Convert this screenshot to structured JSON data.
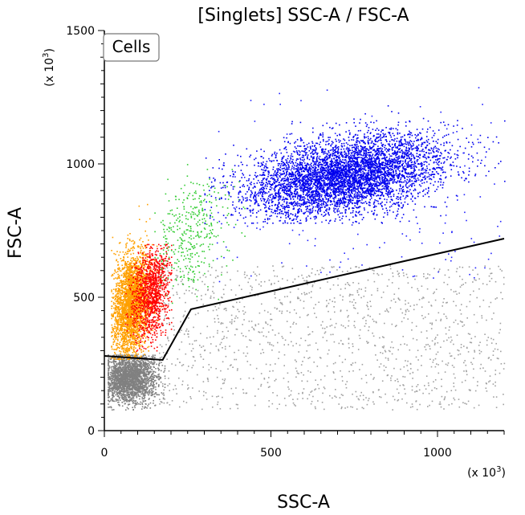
{
  "chart_data": {
    "type": "scatter",
    "title": "[Singlets] SSC-A / FSC-A",
    "xlabel": "SSC-A",
    "ylabel": "FSC-A",
    "x_unit": "(x 10",
    "x_unit_exp": "3",
    "x_unit_end": ")",
    "y_unit": "(x 10",
    "y_unit_exp": "3",
    "y_unit_end": ")",
    "xlim": [
      0,
      1200
    ],
    "ylim": [
      0,
      1500
    ],
    "x_ticks": [
      0,
      500,
      1000
    ],
    "x_tick_labels": [
      "0",
      "500",
      "1000"
    ],
    "y_ticks": [
      0,
      500,
      1000,
      1500
    ],
    "y_tick_labels": [
      "0",
      "500",
      "1000",
      "1500"
    ],
    "x_minor_step": 50,
    "y_minor_step": 50,
    "grid": false,
    "gate": {
      "label": "Cells",
      "vertices": [
        [
          0,
          280
        ],
        [
          175,
          265
        ],
        [
          260,
          455
        ],
        [
          1200,
          720
        ]
      ]
    },
    "populations": [
      {
        "color": "#808080",
        "n": 2600,
        "type": "gauss",
        "cx": 75,
        "cy": 200,
        "sx": 42,
        "sy": 50,
        "xr": [
          10,
          180
        ],
        "yr": [
          80,
          285
        ]
      },
      {
        "color": "#a0a0a0",
        "n": 1300,
        "type": "uniform",
        "xr": [
          160,
          1200
        ],
        "yr": [
          80,
          620
        ]
      },
      {
        "color": "#ffa000",
        "n": 2800,
        "type": "gauss",
        "cx": 80,
        "cy": 480,
        "sx": 28,
        "sy": 95,
        "tilt": 0.9,
        "xr": [
          20,
          200
        ],
        "yr": [
          270,
          850
        ]
      },
      {
        "color": "#ff0000",
        "n": 1200,
        "type": "gauss",
        "cx": 140,
        "cy": 520,
        "sx": 28,
        "sy": 85,
        "tilt": 0.9,
        "xr": [
          60,
          200
        ],
        "yr": [
          300,
          700
        ]
      },
      {
        "color": "#33cc33",
        "n": 380,
        "type": "gauss",
        "cx": 260,
        "cy": 740,
        "sx": 60,
        "sy": 100,
        "tilt": 0.5,
        "xr": [
          150,
          420
        ],
        "yr": [
          480,
          1000
        ]
      },
      {
        "color": "#0000ee",
        "n": 5200,
        "type": "gauss",
        "cx": 720,
        "cy": 960,
        "sx": 150,
        "sy": 70,
        "tilt": 0.18,
        "xr": [
          300,
          1200
        ],
        "yr": [
          780,
          1220
        ]
      },
      {
        "color": "#2222ff",
        "n": 260,
        "type": "uniform",
        "xr": [
          320,
          1200
        ],
        "yr": [
          560,
          1300
        ]
      }
    ]
  }
}
